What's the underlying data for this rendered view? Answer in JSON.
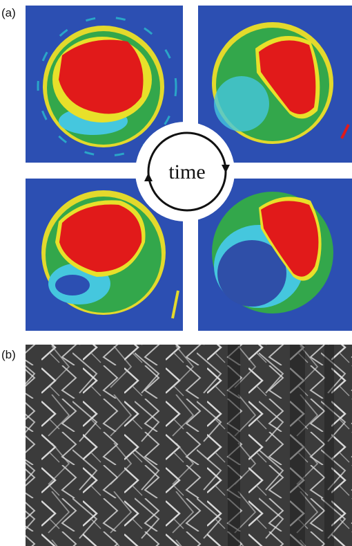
{
  "panel_a": {
    "label": "(a)",
    "center_label": "time"
  },
  "panel_b": {
    "label": "(b)"
  }
}
